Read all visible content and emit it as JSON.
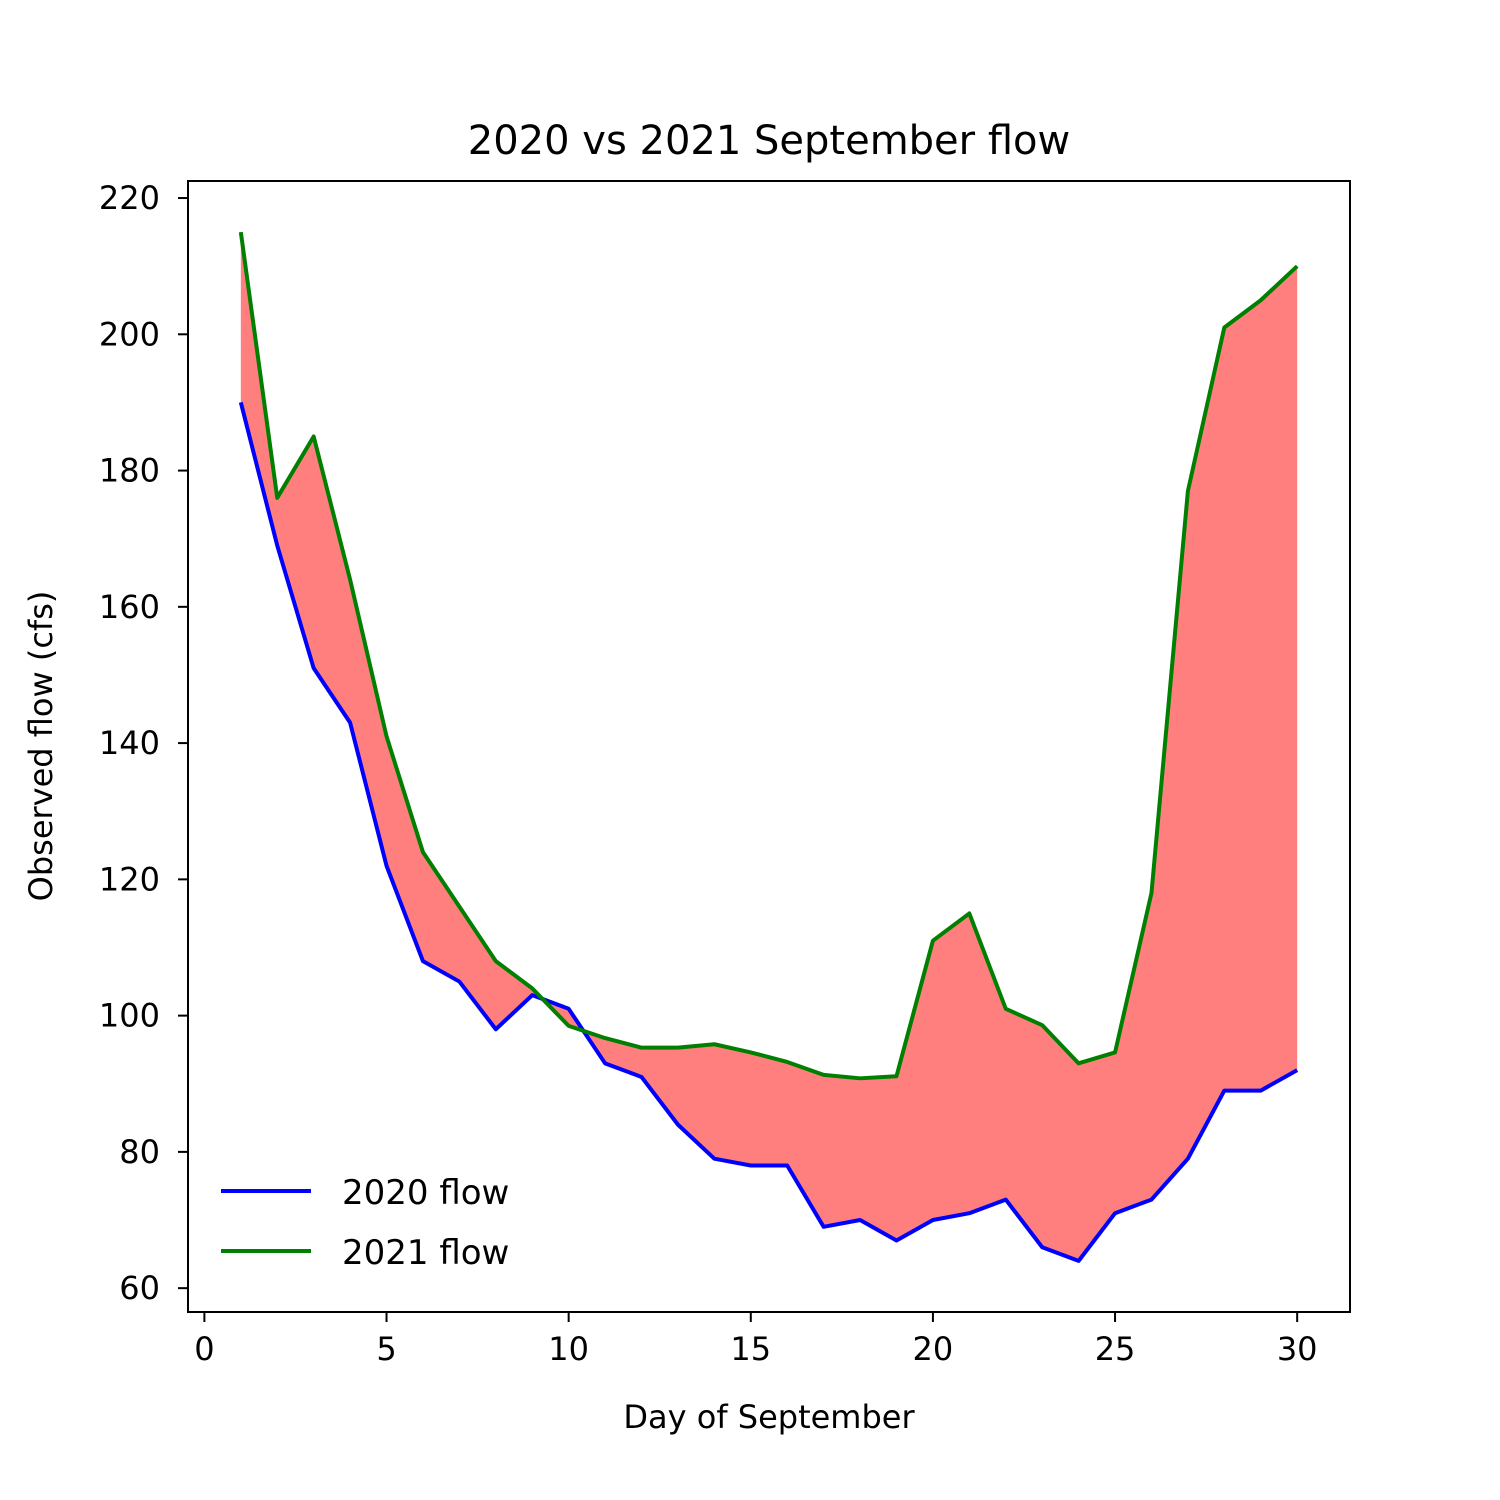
{
  "chart_data": {
    "type": "line",
    "title": "2020 vs 2021 September flow",
    "xlabel": "Day of September",
    "ylabel": "Observed flow (cfs)",
    "xlim": [
      -0.45,
      31.45
    ],
    "ylim": [
      56.5,
      222.5
    ],
    "xticks": [
      0,
      5,
      10,
      15,
      20,
      25,
      30
    ],
    "yticks": [
      60,
      80,
      100,
      120,
      140,
      160,
      180,
      200,
      220
    ],
    "grid": false,
    "legend_position": "lower-left",
    "fill_between": {
      "color": "#ff7f7f",
      "between": [
        "2020 flow",
        "2021 flow"
      ]
    },
    "x": [
      1,
      2,
      3,
      4,
      5,
      6,
      7,
      8,
      9,
      10,
      11,
      12,
      13,
      14,
      15,
      16,
      17,
      18,
      19,
      20,
      21,
      22,
      23,
      24,
      25,
      26,
      27,
      28,
      29,
      30
    ],
    "series": [
      {
        "name": "2020 flow",
        "color": "#0000ff",
        "values": [
          190,
          169,
          151,
          143,
          122,
          108,
          105,
          98,
          103,
          101,
          93,
          91,
          84,
          79,
          78,
          78,
          69,
          70,
          67,
          70,
          71,
          73,
          66,
          64,
          71,
          73,
          79,
          89,
          89,
          92
        ]
      },
      {
        "name": "2021 flow",
        "color": "#008000",
        "values": [
          215,
          176,
          185,
          164,
          141,
          124,
          116,
          108,
          104,
          98.5,
          96.7,
          95.3,
          95.3,
          95.8,
          94.6,
          93.2,
          91.3,
          90.8,
          91.1,
          111,
          115,
          101,
          98.6,
          93,
          94.6,
          118,
          177,
          201,
          205,
          210
        ]
      }
    ]
  }
}
